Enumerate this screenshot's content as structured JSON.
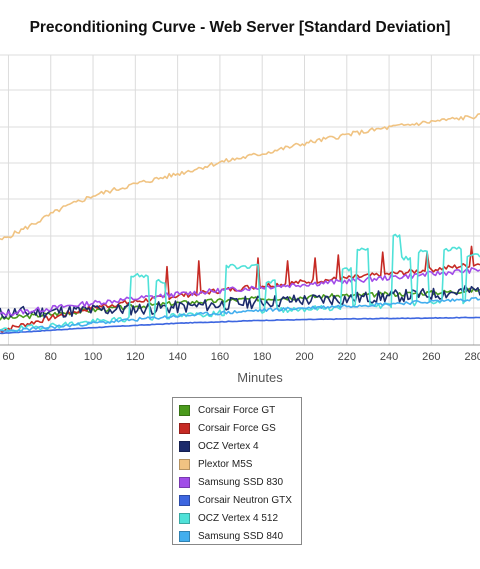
{
  "chart_data": {
    "type": "line",
    "title": "Preconditioning Curve - Web Server [Standard Deviation]",
    "xlabel": "Minutes",
    "ylabel": "",
    "x_ticks": [
      60,
      80,
      100,
      120,
      140,
      160,
      180,
      200,
      220,
      240,
      260,
      280
    ],
    "xlim": [
      56,
      283
    ],
    "ylim": [
      0,
      100
    ],
    "grid": true,
    "legend_position": "bottom",
    "series": [
      {
        "name": "Corsair Force GT",
        "color": "#4a9a1c",
        "points": [
          [
            56,
            9
          ],
          [
            100,
            12
          ],
          [
            140,
            14.5
          ],
          [
            180,
            16
          ],
          [
            220,
            17
          ],
          [
            260,
            18
          ],
          [
            283,
            19
          ]
        ],
        "noise": 0.8,
        "seed": 3
      },
      {
        "name": "Corsair Force GS",
        "color": "#c62a24",
        "points": [
          [
            56,
            5
          ],
          [
            100,
            13
          ],
          [
            140,
            17
          ],
          [
            180,
            20.5
          ],
          [
            220,
            23
          ],
          [
            260,
            26
          ],
          [
            283,
            28
          ]
        ],
        "noise": 0.9,
        "seed": 7,
        "spikes": [
          [
            135,
            27
          ],
          [
            150,
            29
          ],
          [
            178,
            30
          ],
          [
            192,
            29
          ],
          [
            205,
            30
          ],
          [
            216,
            31
          ],
          [
            237,
            32
          ],
          [
            258,
            32
          ],
          [
            279,
            34
          ]
        ]
      },
      {
        "name": "OCZ Vertex 4",
        "color": "#1b2a6b",
        "points": [
          [
            56,
            11
          ],
          [
            100,
            12
          ],
          [
            140,
            13
          ],
          [
            180,
            15
          ],
          [
            220,
            16
          ],
          [
            260,
            17.5
          ],
          [
            283,
            19
          ]
        ],
        "noise": 2.2,
        "seed": 11
      },
      {
        "name": "Plextor M5S",
        "color": "#f0c382",
        "points": [
          [
            56,
            36
          ],
          [
            70,
            41
          ],
          [
            85,
            47
          ],
          [
            100,
            51.5
          ],
          [
            120,
            55.5
          ],
          [
            140,
            59
          ],
          [
            160,
            63
          ],
          [
            180,
            66
          ],
          [
            200,
            69.5
          ],
          [
            220,
            72.5
          ],
          [
            240,
            75
          ],
          [
            260,
            77
          ],
          [
            283,
            79
          ]
        ],
        "noise": 0.8,
        "seed": 5
      },
      {
        "name": "Samsung SSD 830",
        "color": "#a14ce8",
        "points": [
          [
            56,
            10.5
          ],
          [
            100,
            14.5
          ],
          [
            140,
            17.5
          ],
          [
            180,
            20
          ],
          [
            220,
            22
          ],
          [
            260,
            24.5
          ],
          [
            283,
            26
          ]
        ],
        "noise": 0.9,
        "seed": 13
      },
      {
        "name": "Corsair Neutron GTX",
        "color": "#3d66e0",
        "points": [
          [
            56,
            4
          ],
          [
            100,
            6
          ],
          [
            140,
            7.5
          ],
          [
            180,
            8.5
          ],
          [
            220,
            9
          ],
          [
            260,
            9.3
          ],
          [
            283,
            9.5
          ]
        ],
        "noise": 0.1,
        "seed": 17
      },
      {
        "name": "OCZ Vertex 4 512",
        "color": "#4fe1d8",
        "points": [
          [
            56,
            5
          ],
          [
            100,
            8
          ],
          [
            140,
            10
          ],
          [
            180,
            12
          ],
          [
            220,
            13
          ],
          [
            260,
            14.5
          ],
          [
            283,
            15.5
          ]
        ],
        "noise": 1.0,
        "seed": 19,
        "plateaus": [
          [
            118,
            126,
            24
          ],
          [
            130,
            134,
            22
          ],
          [
            163,
            178,
            27
          ],
          [
            182,
            186,
            22
          ],
          [
            218,
            222,
            26
          ],
          [
            225,
            230,
            33
          ],
          [
            242,
            246,
            38
          ],
          [
            246,
            250,
            30
          ],
          [
            254,
            258,
            32
          ],
          [
            266,
            274,
            33
          ],
          [
            277,
            283,
            31
          ]
        ]
      },
      {
        "name": "Samsung SSD 840",
        "color": "#42aeee",
        "points": [
          [
            56,
            4.5
          ],
          [
            100,
            7.5
          ],
          [
            140,
            10
          ],
          [
            180,
            12
          ],
          [
            220,
            13.5
          ],
          [
            260,
            15
          ],
          [
            283,
            16
          ]
        ],
        "noise": 0.6,
        "seed": 23
      }
    ]
  }
}
